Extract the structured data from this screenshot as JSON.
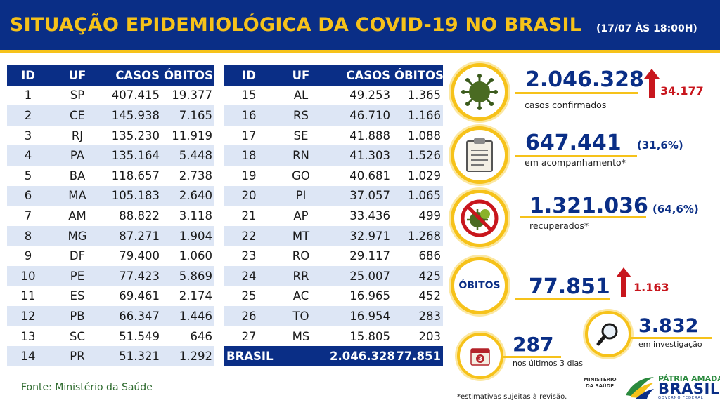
{
  "header": {
    "title": "SITUAÇÃO EPIDEMIOLÓGICA DA COVID-19 NO BRASIL",
    "datetime": "(17/07 ÀS 18:00H)"
  },
  "table": {
    "columns": [
      "ID",
      "UF",
      "CASOS",
      "ÓBITOS"
    ],
    "left_rows": [
      [
        "1",
        "SP",
        "407.415",
        "19.377"
      ],
      [
        "2",
        "CE",
        "145.938",
        "7.165"
      ],
      [
        "3",
        "RJ",
        "135.230",
        "11.919"
      ],
      [
        "4",
        "PA",
        "135.164",
        "5.448"
      ],
      [
        "5",
        "BA",
        "118.657",
        "2.738"
      ],
      [
        "6",
        "MA",
        "105.183",
        "2.640"
      ],
      [
        "7",
        "AM",
        "88.822",
        "3.118"
      ],
      [
        "8",
        "MG",
        "87.271",
        "1.904"
      ],
      [
        "9",
        "DF",
        "79.400",
        "1.060"
      ],
      [
        "10",
        "PE",
        "77.423",
        "5.869"
      ],
      [
        "11",
        "ES",
        "69.461",
        "2.174"
      ],
      [
        "12",
        "PB",
        "66.347",
        "1.446"
      ],
      [
        "13",
        "SC",
        "51.549",
        "646"
      ],
      [
        "14",
        "PR",
        "51.321",
        "1.292"
      ]
    ],
    "right_rows": [
      [
        "15",
        "AL",
        "49.253",
        "1.365"
      ],
      [
        "16",
        "RS",
        "46.710",
        "1.166"
      ],
      [
        "17",
        "SE",
        "41.888",
        "1.088"
      ],
      [
        "18",
        "RN",
        "41.303",
        "1.526"
      ],
      [
        "19",
        "GO",
        "40.681",
        "1.029"
      ],
      [
        "20",
        "PI",
        "37.057",
        "1.065"
      ],
      [
        "21",
        "AP",
        "33.436",
        "499"
      ],
      [
        "22",
        "MT",
        "32.971",
        "1.268"
      ],
      [
        "23",
        "RO",
        "29.117",
        "686"
      ],
      [
        "24",
        "RR",
        "25.007",
        "425"
      ],
      [
        "25",
        "AC",
        "16.965",
        "452"
      ],
      [
        "26",
        "TO",
        "16.954",
        "283"
      ],
      [
        "27",
        "MS",
        "15.805",
        "203"
      ]
    ],
    "total": {
      "label": "BRASIL",
      "cases": "2.046.328",
      "deaths": "77.851"
    }
  },
  "stats": {
    "confirmed": {
      "value": "2.046.328",
      "label": "casos confirmados",
      "delta": "34.177",
      "icon": "virus-icon"
    },
    "monitoring": {
      "value": "647.441",
      "pct": "(31,6%)",
      "label": "em acompanhamento*",
      "icon": "clipboard-icon"
    },
    "recovered": {
      "value": "1.321.036",
      "pct": "(64,6%)",
      "label": "recuperados*",
      "icon": "virus-prohibited-icon"
    },
    "deaths": {
      "title": "ÓBITOS",
      "value": "77.851",
      "delta": "1.163"
    },
    "investigation": {
      "value": "3.832",
      "label": "em investigação",
      "icon": "magnifier-icon"
    },
    "last3days": {
      "value": "287",
      "label": "nos últimos 3 dias",
      "icon": "calendar-icon",
      "badge": "3"
    }
  },
  "footer": {
    "source": "Fonte: Ministério da Saúde",
    "note": "*estimativas sujeitas à revisão.",
    "ministry": "MINISTÉRIO DA SAÚDE",
    "slogan": "PÁTRIA AMADA",
    "country": "BRASIL",
    "gov": "GOVERNO FEDERAL"
  },
  "colors": {
    "navy": "#0a2e86",
    "gold": "#f6c21a",
    "red": "#c8161d",
    "green": "#2b8a3e"
  }
}
